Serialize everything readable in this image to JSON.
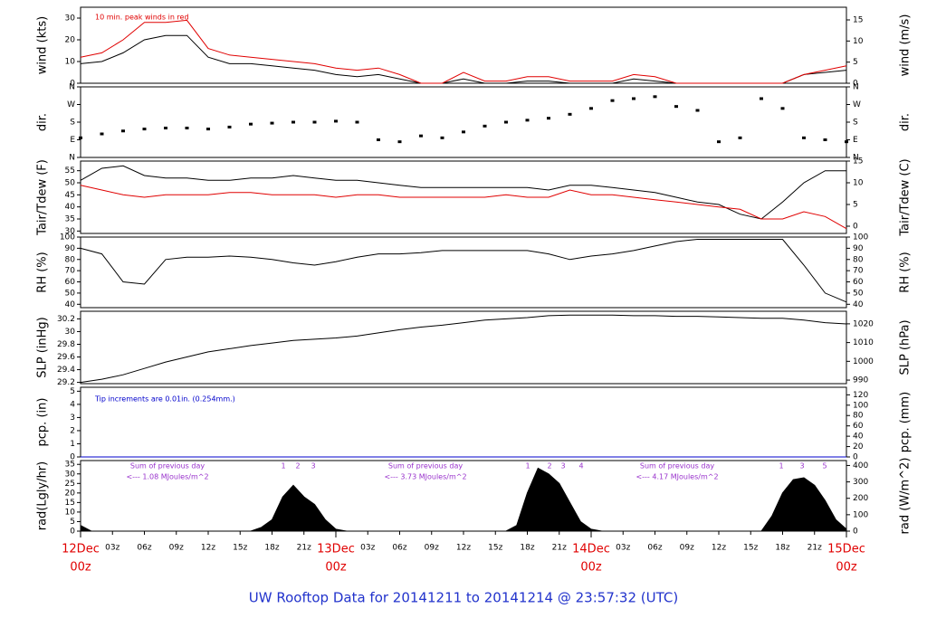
{
  "title": "UW Rooftop Data for 20141211  to  20141214 @ 23:57:32  (UTC)",
  "chart_data": [
    {
      "type": "line",
      "ylabel": "wind (kts)",
      "y2label": "wind (m/s)",
      "annotations": [
        "10 min. peak winds in red"
      ],
      "x": [
        0,
        2,
        4,
        6,
        8,
        10,
        12,
        14,
        16,
        18,
        20,
        22,
        24,
        26,
        28,
        30,
        32,
        34,
        36,
        38,
        40,
        42,
        44,
        46,
        48,
        50,
        52,
        54,
        56,
        58,
        60,
        62,
        64,
        66,
        68,
        70,
        72
      ],
      "xlim": [
        0,
        72
      ],
      "ylim": [
        0,
        35
      ],
      "yticks": [
        0,
        10,
        20,
        30
      ],
      "y2lim": [
        0,
        18
      ],
      "y2ticks": [
        0,
        5,
        10,
        15
      ],
      "series": [
        {
          "name": "wind",
          "color": "#000000",
          "values": [
            9,
            10,
            14,
            20,
            22,
            22,
            12,
            9,
            9,
            8,
            7,
            6,
            4,
            3,
            4,
            2,
            0,
            0,
            2,
            0,
            0,
            1,
            1,
            0,
            0,
            0,
            2,
            1,
            0,
            0,
            0,
            0,
            0,
            0,
            4,
            5,
            6
          ]
        },
        {
          "name": "peak",
          "color": "#e00000",
          "values": [
            12,
            14,
            20,
            28,
            28,
            29,
            16,
            13,
            12,
            11,
            10,
            9,
            7,
            6,
            7,
            4,
            0,
            0,
            5,
            1,
            1,
            3,
            3,
            1,
            1,
            1,
            4,
            3,
            0,
            0,
            0,
            0,
            0,
            0,
            4,
            6,
            8
          ]
        }
      ]
    },
    {
      "type": "scatter",
      "ylabel": "dir.",
      "y2label": "dir.",
      "x": [
        0,
        2,
        4,
        6,
        8,
        10,
        12,
        14,
        16,
        18,
        20,
        22,
        24,
        26,
        28,
        30,
        32,
        34,
        36,
        38,
        40,
        42,
        44,
        46,
        48,
        50,
        52,
        54,
        56,
        58,
        60,
        62,
        64,
        66,
        68,
        70,
        72
      ],
      "xlim": [
        0,
        72
      ],
      "ylim": [
        0,
        360
      ],
      "yticks": [
        {
          "value": 0,
          "label": "N"
        },
        {
          "value": 90,
          "label": "E"
        },
        {
          "value": 180,
          "label": "S"
        },
        {
          "value": 270,
          "label": "W"
        },
        {
          "value": 360,
          "label": "N"
        }
      ],
      "y2lim": [
        0,
        360
      ],
      "y2ticks": [
        {
          "value": 0,
          "label": "N"
        },
        {
          "value": 90,
          "label": "E"
        },
        {
          "value": 180,
          "label": "S"
        },
        {
          "value": 270,
          "label": "W"
        },
        {
          "value": 360,
          "label": "N"
        }
      ],
      "series": [
        {
          "name": "direction",
          "color": "#000000",
          "values": [
            100,
            120,
            135,
            145,
            150,
            150,
            145,
            155,
            170,
            175,
            180,
            180,
            185,
            180,
            90,
            80,
            110,
            100,
            130,
            160,
            180,
            190,
            200,
            220,
            250,
            290,
            300,
            310,
            260,
            240,
            80,
            100,
            300,
            250,
            100,
            90,
            80
          ]
        }
      ]
    },
    {
      "type": "line",
      "ylabel": "Tair/Tdew (F)",
      "y2label": "Tair/Tdew (C)",
      "x": [
        0,
        2,
        4,
        6,
        8,
        10,
        12,
        14,
        16,
        18,
        20,
        22,
        24,
        26,
        28,
        30,
        32,
        34,
        36,
        38,
        40,
        42,
        44,
        46,
        48,
        50,
        52,
        54,
        56,
        58,
        60,
        62,
        64,
        66,
        68,
        70,
        72
      ],
      "xlim": [
        0,
        72
      ],
      "ylim": [
        29,
        59
      ],
      "yticks": [
        30,
        35,
        40,
        45,
        50,
        55
      ],
      "y2lim": [
        -1.67,
        15
      ],
      "y2ticks": [
        0,
        5,
        10,
        15
      ],
      "series": [
        {
          "name": "Tair",
          "color": "#000000",
          "values": [
            51,
            56,
            57,
            53,
            52,
            52,
            51,
            51,
            52,
            52,
            53,
            52,
            51,
            51,
            50,
            49,
            48,
            48,
            48,
            48,
            48,
            48,
            47,
            49,
            49,
            48,
            47,
            46,
            44,
            42,
            41,
            37,
            35,
            42,
            50,
            55,
            55
          ]
        },
        {
          "name": "Tdew",
          "color": "#e00000",
          "values": [
            49,
            47,
            45,
            44,
            45,
            45,
            45,
            46,
            46,
            45,
            45,
            45,
            44,
            45,
            45,
            44,
            44,
            44,
            44,
            44,
            45,
            44,
            44,
            47,
            45,
            45,
            44,
            43,
            42,
            41,
            40,
            39,
            35,
            35,
            38,
            36,
            31
          ]
        }
      ]
    },
    {
      "type": "line",
      "ylabel": "RH (%)",
      "y2label": "RH (%)",
      "x": [
        0,
        2,
        4,
        6,
        8,
        10,
        12,
        14,
        16,
        18,
        20,
        22,
        24,
        26,
        28,
        30,
        32,
        34,
        36,
        38,
        40,
        42,
        44,
        46,
        48,
        50,
        52,
        54,
        56,
        58,
        60,
        62,
        64,
        66,
        68,
        70,
        72
      ],
      "xlim": [
        0,
        72
      ],
      "ylim": [
        37,
        100
      ],
      "yticks": [
        40,
        50,
        60,
        70,
        80,
        90,
        100
      ],
      "y2lim": [
        37,
        100
      ],
      "y2ticks": [
        40,
        50,
        60,
        70,
        80,
        90,
        100
      ],
      "series": [
        {
          "name": "RH",
          "color": "#000000",
          "values": [
            90,
            85,
            60,
            58,
            80,
            82,
            82,
            83,
            82,
            80,
            77,
            75,
            78,
            82,
            85,
            85,
            86,
            88,
            88,
            88,
            88,
            88,
            85,
            80,
            83,
            85,
            88,
            92,
            96,
            98,
            98,
            98,
            98,
            98,
            75,
            50,
            42
          ]
        }
      ]
    },
    {
      "type": "line",
      "ylabel": "SLP (inHg)",
      "y2label": "SLP (hPa)",
      "x": [
        0,
        2,
        4,
        6,
        8,
        10,
        12,
        14,
        16,
        18,
        20,
        22,
        24,
        26,
        28,
        30,
        32,
        34,
        36,
        38,
        40,
        42,
        44,
        46,
        48,
        50,
        52,
        54,
        56,
        58,
        60,
        62,
        64,
        66,
        68,
        70,
        72
      ],
      "xlim": [
        0,
        72
      ],
      "ylim": [
        29.18,
        30.32
      ],
      "yticks": [
        29.2,
        29.4,
        29.6,
        29.8,
        30.0,
        30.2
      ],
      "y2lim": [
        988.1,
        1026.7
      ],
      "y2ticks": [
        990,
        1000,
        1010,
        1020
      ],
      "series": [
        {
          "name": "SLP",
          "color": "#000000",
          "values": [
            29.2,
            29.25,
            29.32,
            29.42,
            29.52,
            29.6,
            29.68,
            29.73,
            29.78,
            29.82,
            29.86,
            29.88,
            29.9,
            29.93,
            29.98,
            30.03,
            30.07,
            30.1,
            30.14,
            30.18,
            30.2,
            30.22,
            30.25,
            30.26,
            30.26,
            30.26,
            30.25,
            30.25,
            30.24,
            30.24,
            30.23,
            30.22,
            30.21,
            30.21,
            30.18,
            30.14,
            30.12
          ]
        }
      ]
    },
    {
      "type": "line",
      "ylabel": "pcp. (in)",
      "y2label": "pcp. (mm)",
      "annotations": [
        "Tip increments are 0.01in. (0.254mm.)"
      ],
      "x": [
        0,
        2,
        4,
        6,
        8,
        10,
        12,
        14,
        16,
        18,
        20,
        22,
        24,
        26,
        28,
        30,
        32,
        34,
        36,
        38,
        40,
        42,
        44,
        46,
        48,
        50,
        52,
        54,
        56,
        58,
        60,
        62,
        64,
        66,
        68,
        70,
        72
      ],
      "xlim": [
        0,
        72
      ],
      "ylim": [
        0,
        5.3
      ],
      "yticks": [
        0,
        1,
        2,
        3,
        4,
        5
      ],
      "y2lim": [
        0,
        134.6
      ],
      "y2ticks": [
        0,
        20,
        40,
        60,
        80,
        100,
        120
      ],
      "series": [
        {
          "name": "pcp",
          "color": "#0000cc",
          "values": [
            0,
            0,
            0,
            0,
            0,
            0,
            0,
            0,
            0,
            0,
            0,
            0,
            0,
            0,
            0,
            0,
            0,
            0,
            0,
            0,
            0,
            0,
            0,
            0,
            0,
            0,
            0,
            0,
            0,
            0,
            0,
            0,
            0,
            0,
            0,
            0,
            0
          ]
        }
      ]
    },
    {
      "type": "area",
      "ylabel": "rad(Lgly/hr)",
      "y2label": "rad (W/m^2)",
      "annotations": [
        "Sum of previous day",
        "<--- 1.08 MJoules/m^2",
        "Sum of previous day",
        "<--- 3.73 MJoules/m^2",
        "Sum of previous day",
        "<--- 4.17 MJoules/m^2",
        "1",
        "2",
        "3",
        "1",
        "2",
        "3",
        "4",
        "1",
        "3",
        "5"
      ],
      "x": [
        0,
        1,
        2,
        16,
        17,
        18,
        19,
        20,
        21,
        22,
        23,
        24,
        25,
        40,
        41,
        42,
        43,
        44,
        45,
        46,
        47,
        48,
        49,
        64,
        65,
        66,
        67,
        68,
        69,
        70,
        71,
        72
      ],
      "xlim": [
        0,
        72
      ],
      "ylim": [
        0,
        37
      ],
      "yticks": [
        0,
        5,
        10,
        15,
        20,
        25,
        30,
        35
      ],
      "y2lim": [
        0,
        430
      ],
      "y2ticks": [
        0,
        100,
        200,
        300,
        400
      ],
      "xticks": [
        {
          "value": 3,
          "label": "03z"
        },
        {
          "value": 6,
          "label": "06z"
        },
        {
          "value": 9,
          "label": "09z"
        },
        {
          "value": 12,
          "label": "12z"
        },
        {
          "value": 15,
          "label": "15z"
        },
        {
          "value": 18,
          "label": "18z"
        },
        {
          "value": 21,
          "label": "21z"
        },
        {
          "value": 27,
          "label": "03z"
        },
        {
          "value": 30,
          "label": "06z"
        },
        {
          "value": 33,
          "label": "09z"
        },
        {
          "value": 36,
          "label": "12z"
        },
        {
          "value": 39,
          "label": "15z"
        },
        {
          "value": 42,
          "label": "18z"
        },
        {
          "value": 45,
          "label": "21z"
        },
        {
          "value": 51,
          "label": "03z"
        },
        {
          "value": 54,
          "label": "06z"
        },
        {
          "value": 57,
          "label": "09z"
        },
        {
          "value": 60,
          "label": "12z"
        },
        {
          "value": 63,
          "label": "15z"
        },
        {
          "value": 66,
          "label": "18z"
        },
        {
          "value": 69,
          "label": "21z"
        }
      ],
      "day_ticks": [
        {
          "value": 0,
          "label": "12Dec",
          "sublabel": "00z"
        },
        {
          "value": 24,
          "label": "13Dec",
          "sublabel": "00z"
        },
        {
          "value": 48,
          "label": "14Dec",
          "sublabel": "00z"
        },
        {
          "value": 72,
          "label": "15Dec",
          "sublabel": "00z"
        }
      ],
      "series": [
        {
          "name": "rad",
          "color": "#000000",
          "values": [
            3,
            0,
            0,
            0,
            2,
            6,
            18,
            24,
            18,
            14,
            6,
            1,
            0,
            0,
            3,
            20,
            33,
            30,
            25,
            15,
            5,
            1,
            0,
            0,
            8,
            20,
            27,
            28,
            24,
            16,
            6,
            1
          ]
        }
      ]
    }
  ]
}
